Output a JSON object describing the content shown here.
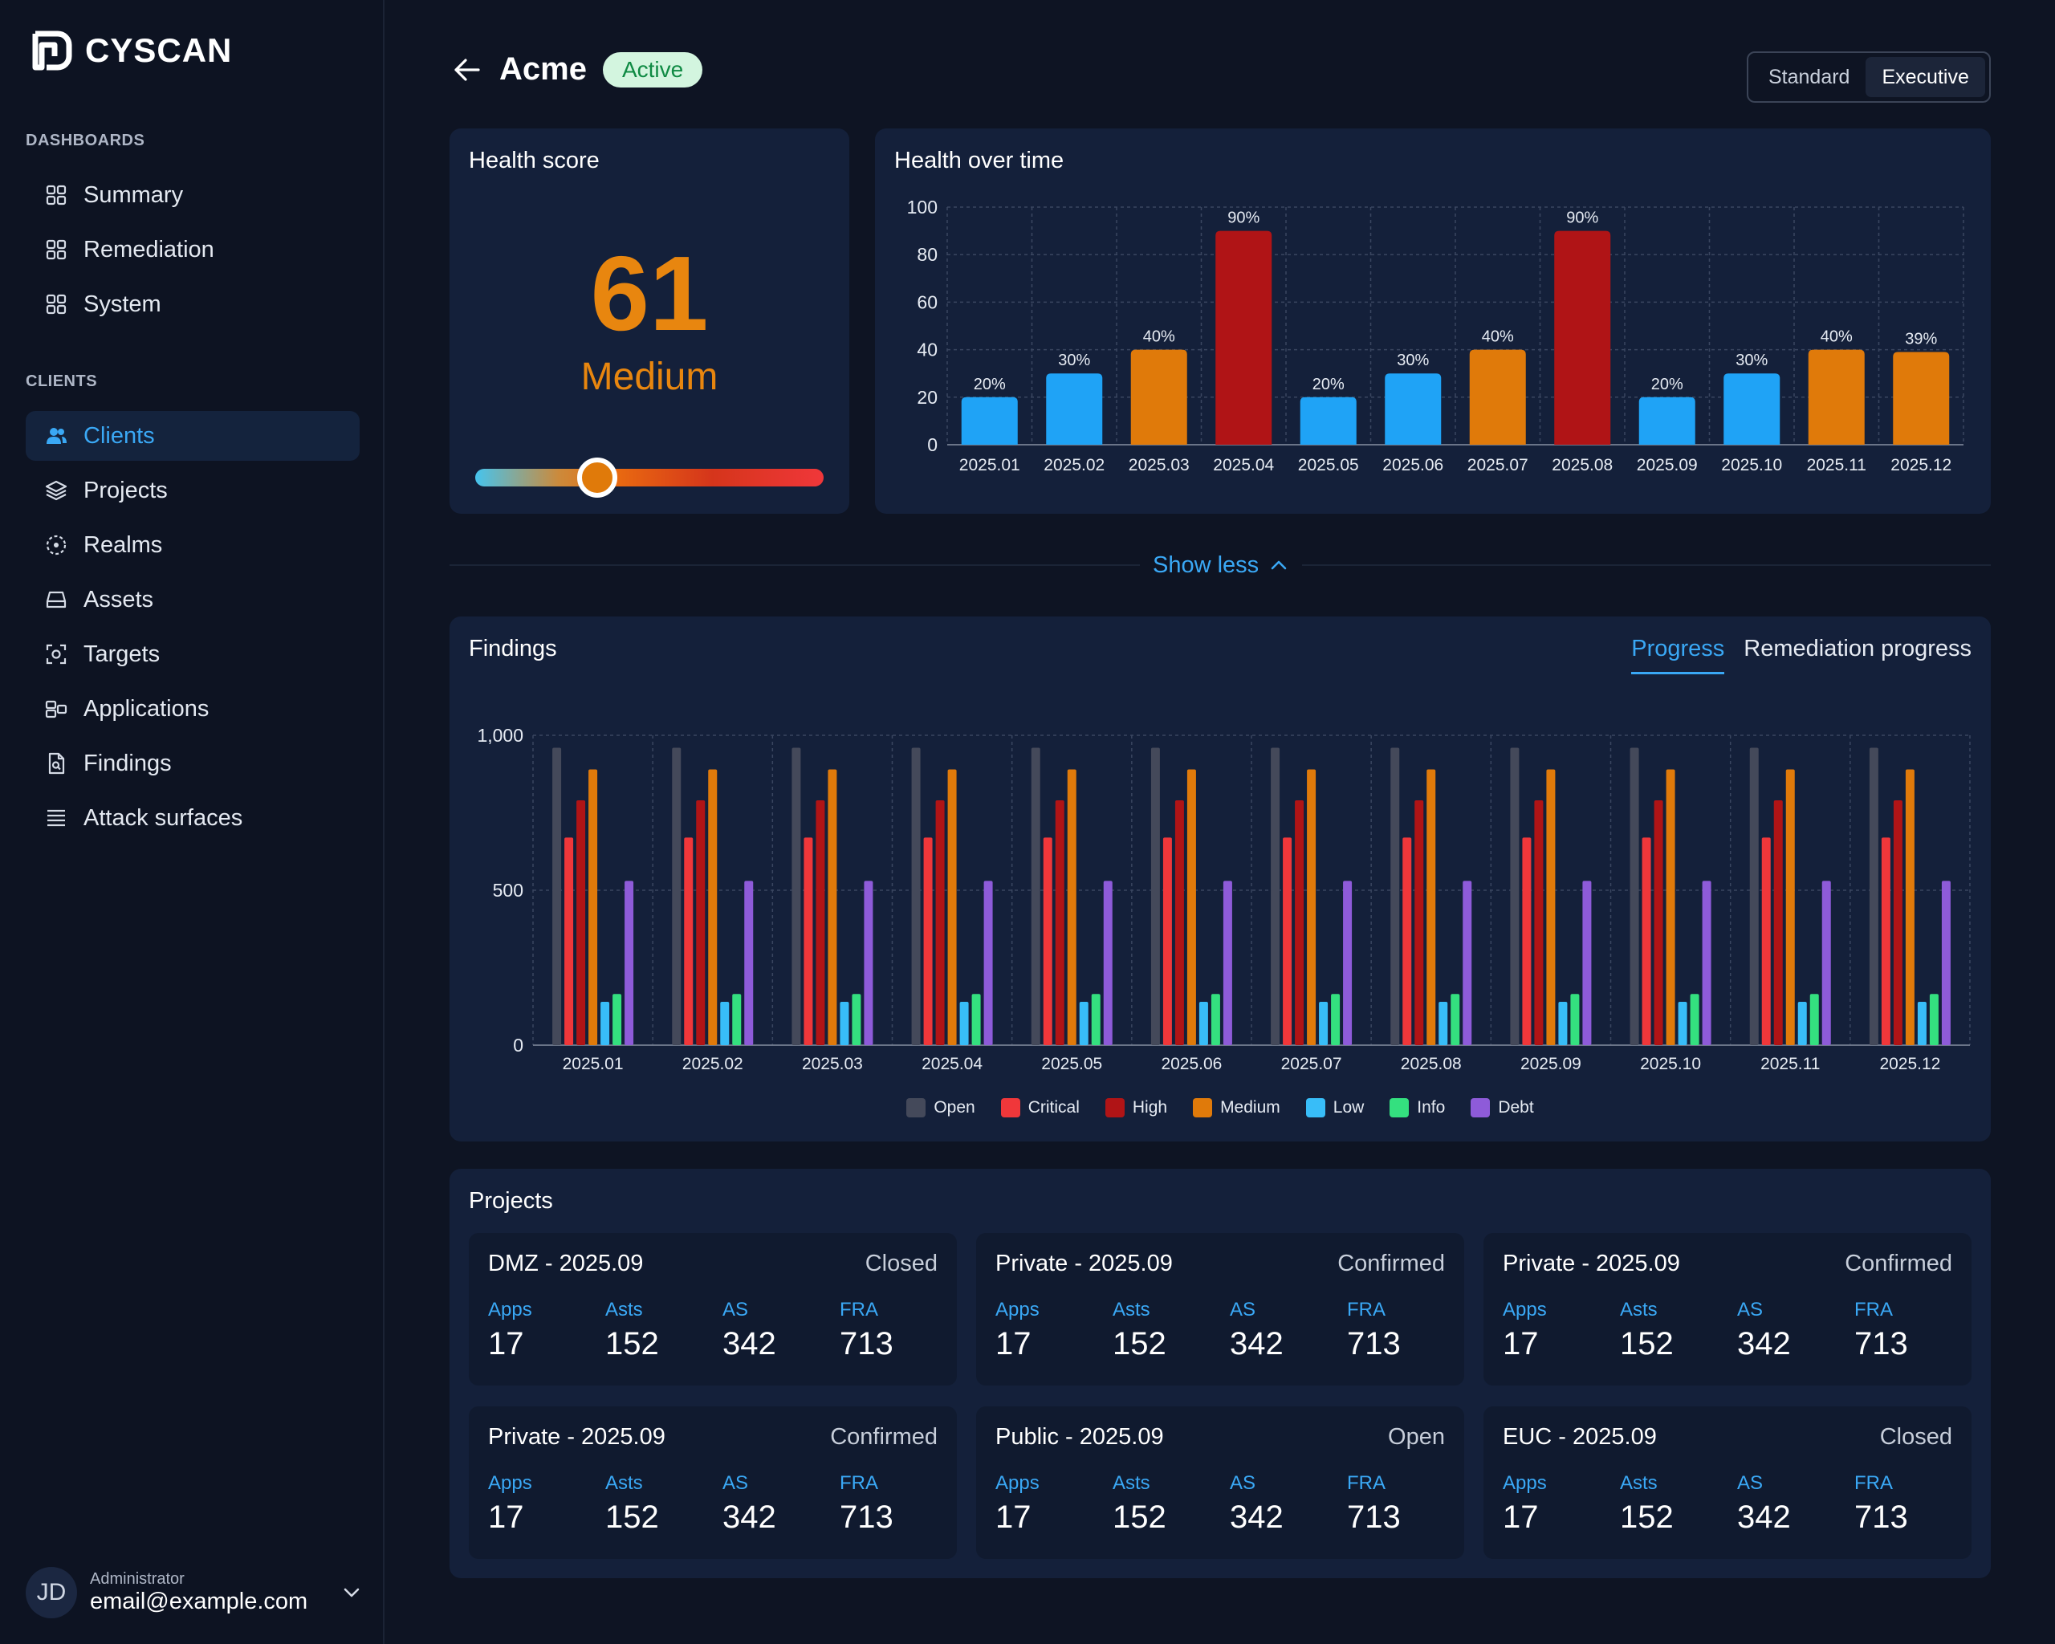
{
  "app": {
    "name": "CYSCAN"
  },
  "sidebar": {
    "sections": [
      {
        "label": "DASHBOARDS",
        "items": [
          {
            "label": "Summary",
            "icon": "grid-icon"
          },
          {
            "label": "Remediation",
            "icon": "grid-icon"
          },
          {
            "label": "System",
            "icon": "grid-icon"
          }
        ]
      },
      {
        "label": "CLIENTS",
        "items": [
          {
            "label": "Clients",
            "icon": "users-icon",
            "active": true
          },
          {
            "label": "Projects",
            "icon": "layers-icon"
          },
          {
            "label": "Realms",
            "icon": "realm-icon"
          },
          {
            "label": "Assets",
            "icon": "drive-icon"
          },
          {
            "label": "Targets",
            "icon": "target-icon"
          },
          {
            "label": "Applications",
            "icon": "apps-icon"
          },
          {
            "label": "Findings",
            "icon": "document-icon"
          },
          {
            "label": "Attack surfaces",
            "icon": "list-icon"
          }
        ]
      }
    ],
    "user": {
      "initials": "JD",
      "role": "Administrator",
      "email": "email@example.com"
    }
  },
  "header": {
    "title": "Acme",
    "status": "Active",
    "view_options": [
      "Standard",
      "Executive"
    ],
    "selected_view": "Executive"
  },
  "health_score": {
    "title": "Health score",
    "value": "61",
    "level": "Medium",
    "slider_fraction": 0.35
  },
  "health_over_time": {
    "title": "Health over time",
    "chart_data": {
      "type": "bar",
      "categories": [
        "2025.01",
        "2025.02",
        "2025.03",
        "2025.04",
        "2025.05",
        "2025.06",
        "2025.07",
        "2025.08",
        "2025.09",
        "2025.10",
        "2025.11",
        "2025.12"
      ],
      "values": [
        20,
        30,
        40,
        90,
        20,
        30,
        40,
        90,
        20,
        30,
        40,
        39
      ],
      "data_labels": [
        "20%",
        "30%",
        "40%",
        "90%",
        "20%",
        "30%",
        "40%",
        "90%",
        "20%",
        "30%",
        "40%",
        "39%"
      ],
      "bar_colors": [
        "#1fa3f6",
        "#1fa3f6",
        "#e07a0a",
        "#b01416",
        "#1fa3f6",
        "#1fa3f6",
        "#e07a0a",
        "#b01416",
        "#1fa3f6",
        "#1fa3f6",
        "#e07a0a",
        "#e07a0a"
      ],
      "ylim": [
        0,
        100
      ],
      "yticks": [
        "0",
        "20",
        "40",
        "60",
        "80",
        "100"
      ],
      "grid": true
    }
  },
  "show_less": {
    "label": "Show less"
  },
  "findings": {
    "title": "Findings",
    "tabs": [
      "Progress",
      "Remediation progress"
    ],
    "active_tab": "Progress",
    "chart_data": {
      "type": "bar",
      "categories": [
        "2025.01",
        "2025.02",
        "2025.03",
        "2025.04",
        "2025.05",
        "2025.06",
        "2025.07",
        "2025.08",
        "2025.09",
        "2025.10",
        "2025.11",
        "2025.12"
      ],
      "ylim": [
        0,
        1000
      ],
      "yticks": [
        "0",
        "500",
        "1,000"
      ],
      "grid": true,
      "legend_position": "bottom",
      "series": [
        {
          "name": "Open",
          "color": "#44495a",
          "values": [
            960,
            960,
            960,
            960,
            960,
            960,
            960,
            960,
            960,
            960,
            960,
            960
          ]
        },
        {
          "name": "Critical",
          "color": "#f0373a",
          "values": [
            670,
            670,
            670,
            670,
            670,
            670,
            670,
            670,
            670,
            670,
            670,
            670
          ]
        },
        {
          "name": "High",
          "color": "#b01416",
          "values": [
            790,
            790,
            790,
            790,
            790,
            790,
            790,
            790,
            790,
            790,
            790,
            790
          ]
        },
        {
          "name": "Medium",
          "color": "#e07a0a",
          "values": [
            890,
            890,
            890,
            890,
            890,
            890,
            890,
            890,
            890,
            890,
            890,
            890
          ]
        },
        {
          "name": "Low",
          "color": "#38bdf8",
          "values": [
            140,
            140,
            140,
            140,
            140,
            140,
            140,
            140,
            140,
            140,
            140,
            140
          ]
        },
        {
          "name": "Info",
          "color": "#34e07f",
          "values": [
            165,
            165,
            165,
            165,
            165,
            165,
            165,
            165,
            165,
            165,
            165,
            165
          ]
        },
        {
          "name": "Debt",
          "color": "#8e5bd9",
          "values": [
            530,
            530,
            530,
            530,
            530,
            530,
            530,
            530,
            530,
            530,
            530,
            530
          ]
        }
      ]
    }
  },
  "projects": {
    "title": "Projects",
    "stat_labels": [
      "Apps",
      "Asts",
      "AS",
      "FRA"
    ],
    "items": [
      {
        "name": "DMZ - 2025.09",
        "status": "Closed",
        "stats": [
          "17",
          "152",
          "342",
          "713"
        ]
      },
      {
        "name": "Private - 2025.09",
        "status": "Confirmed",
        "stats": [
          "17",
          "152",
          "342",
          "713"
        ]
      },
      {
        "name": "Private - 2025.09",
        "status": "Confirmed",
        "stats": [
          "17",
          "152",
          "342",
          "713"
        ]
      },
      {
        "name": "Private - 2025.09",
        "status": "Confirmed",
        "stats": [
          "17",
          "152",
          "342",
          "713"
        ]
      },
      {
        "name": "Public - 2025.09",
        "status": "Open",
        "stats": [
          "17",
          "152",
          "342",
          "713"
        ]
      },
      {
        "name": "EUC - 2025.09",
        "status": "Closed",
        "stats": [
          "17",
          "152",
          "342",
          "713"
        ]
      }
    ]
  }
}
